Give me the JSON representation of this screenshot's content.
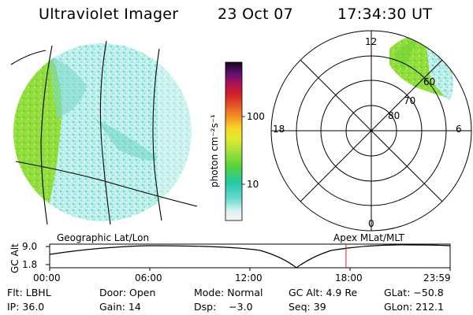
{
  "header": {
    "instrument": "Ultraviolet Imager",
    "date": "23 Oct 07",
    "time": "17:34:30 UT"
  },
  "colorbar": {
    "unit_label": "photon cm⁻²s⁻¹",
    "tick_labels": [
      "100",
      "10"
    ]
  },
  "polar_plot": {
    "mlt_labels": [
      "12",
      "18",
      "6",
      "0"
    ],
    "mlat_labels": [
      "60",
      "70",
      "80"
    ]
  },
  "projections": {
    "left_label": "Geographic Lat/Lon",
    "right_label": "Apex MLat/MLT"
  },
  "altitude_plot": {
    "axis_label": "GC Alt",
    "y_ticks": [
      "9.0",
      "1.8"
    ],
    "x_ticks": [
      "00:00",
      "06:00",
      "12:00",
      "18:00",
      "23:59"
    ],
    "current_time_fraction": 0.74
  },
  "footer": {
    "row1": [
      "Flt: LBHL",
      "Door: Open",
      "Mode: Normal",
      "GC Alt: 4.9 Re",
      "GLat: −50.8"
    ],
    "row2": [
      "IP: 36.0",
      "Gain: 14",
      "Dsp:    −3.0",
      "Seq: 39",
      "GLon: 212.1"
    ]
  },
  "colors": {
    "orbit_marker": "#cc2222",
    "aurora_low": "#bff2ee",
    "aurora_mid": "#33ccbb",
    "aurora_high": "#99dd33"
  }
}
